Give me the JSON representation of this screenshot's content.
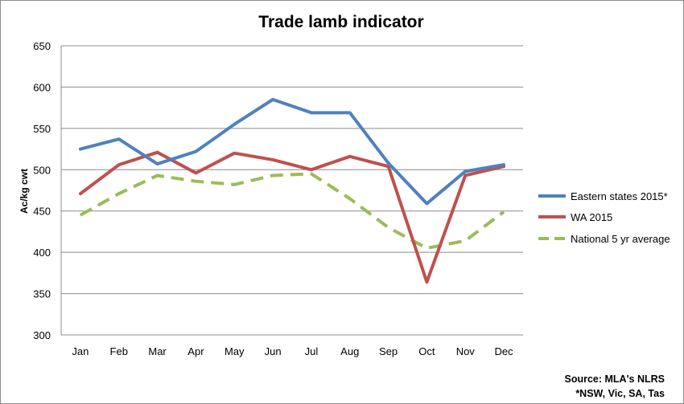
{
  "chart_data": {
    "type": "line",
    "title": "Trade lamb indicator",
    "ylabel": "Ac/kg cwt",
    "xlabel": "",
    "categories": [
      "Jan",
      "Feb",
      "Mar",
      "Apr",
      "May",
      "Jun",
      "Jul",
      "Aug",
      "Sep",
      "Oct",
      "Nov",
      "Dec"
    ],
    "ylim": [
      300,
      650
    ],
    "yticks": [
      300,
      350,
      400,
      450,
      500,
      550,
      600,
      650
    ],
    "grid": true,
    "legend_position": "right",
    "series": [
      {
        "name": "Eastern states 2015*",
        "color": "#4f81bd",
        "dash": "solid",
        "values": [
          525,
          537,
          507,
          522,
          555,
          585,
          569,
          569,
          508,
          459,
          498,
          506
        ]
      },
      {
        "name": "WA 2015",
        "color": "#c0504d",
        "dash": "solid",
        "values": [
          471,
          506,
          521,
          496,
          520,
          512,
          500,
          516,
          504,
          364,
          493,
          504
        ]
      },
      {
        "name": "National 5 yr average",
        "color": "#9bbb59",
        "dash": "dashed",
        "values": [
          445,
          471,
          493,
          486,
          482,
          493,
          495,
          465,
          430,
          405,
          414,
          449
        ]
      }
    ],
    "annotations": [
      "Source: MLA's NLRS",
      "*NSW, Vic, SA, Tas"
    ]
  }
}
